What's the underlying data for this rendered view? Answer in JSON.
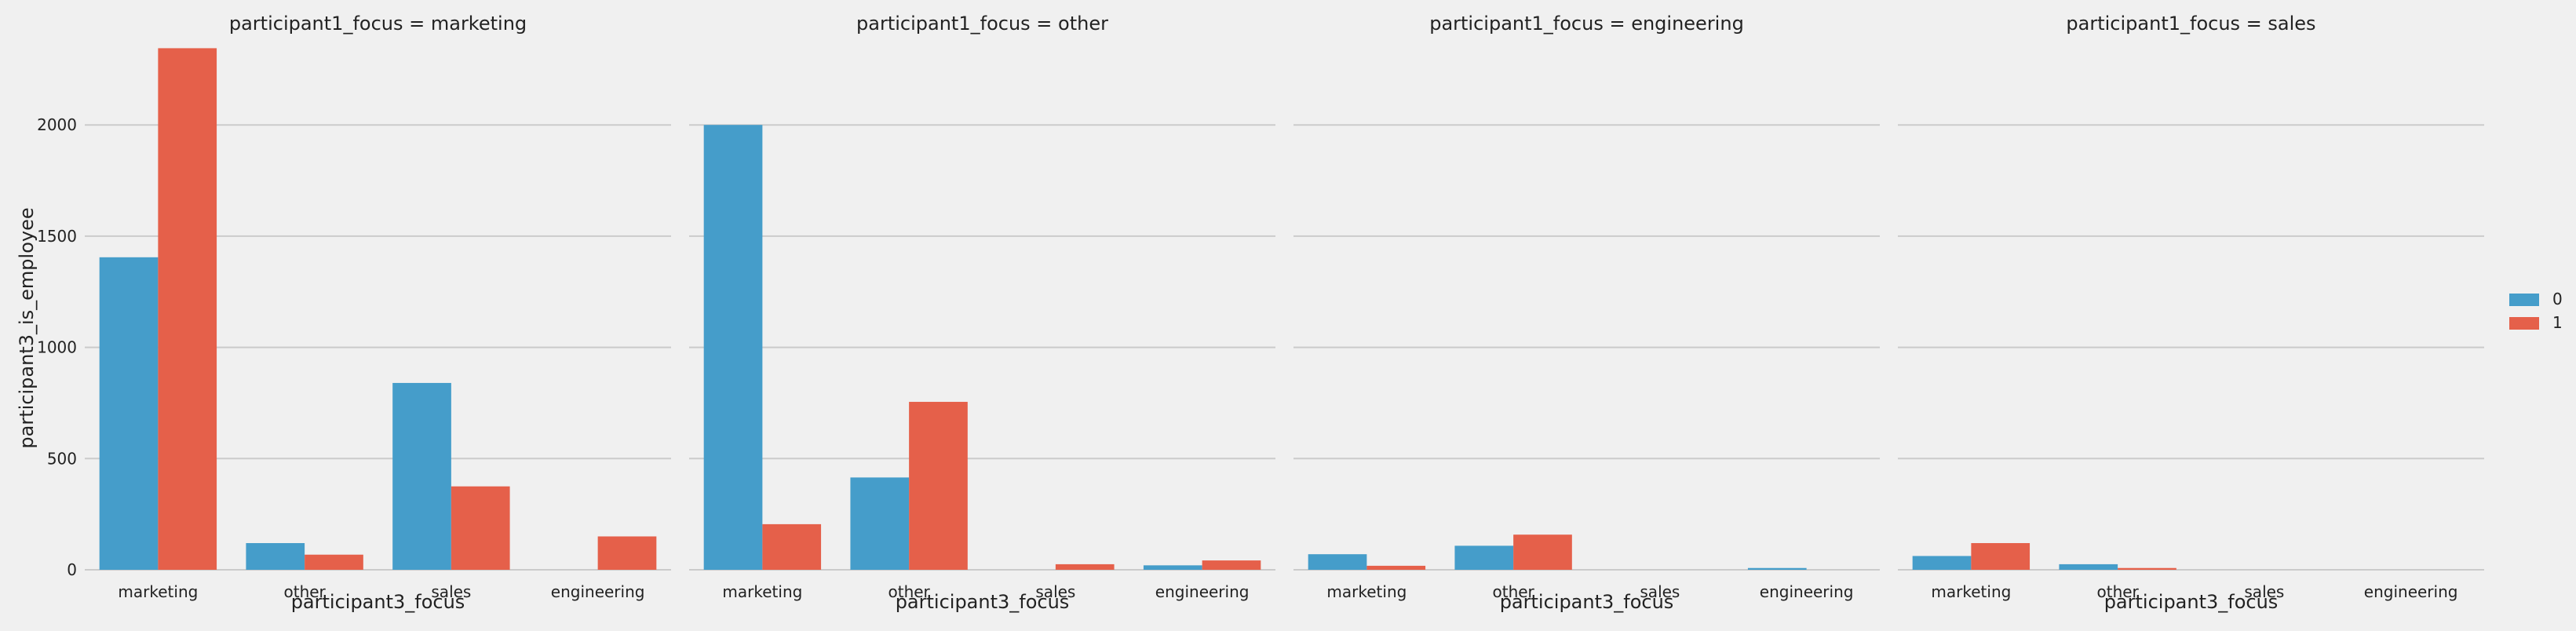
{
  "colors": {
    "background": "#f0f0f0",
    "grid": "#cbcbcb",
    "series": [
      "#459dca",
      "#e5604a"
    ],
    "text": "#222222"
  },
  "chart_data": {
    "type": "bar",
    "ylabel": "participant3_is_employee",
    "xlabel": "participant3_focus",
    "categories": [
      "marketing",
      "other",
      "sales",
      "engineering"
    ],
    "ylim": [
      0,
      2350
    ],
    "yticks": [
      0,
      500,
      1000,
      1500,
      2000
    ],
    "grid": true,
    "legend": {
      "placement": "right",
      "entries": [
        "0",
        "1"
      ]
    },
    "facets": [
      {
        "title": "participant1_focus = marketing",
        "series": [
          {
            "name": "0",
            "values": [
              1405,
              120,
              840,
              0
            ]
          },
          {
            "name": "1",
            "values": [
              2345,
              68,
              375,
              150
            ]
          }
        ]
      },
      {
        "title": "participant1_focus = other",
        "series": [
          {
            "name": "0",
            "values": [
              2000,
              415,
              0,
              20
            ]
          },
          {
            "name": "1",
            "values": [
              205,
              755,
              25,
              42
            ]
          }
        ]
      },
      {
        "title": "participant1_focus = engineering",
        "series": [
          {
            "name": "0",
            "values": [
              70,
              108,
              0,
              8
            ]
          },
          {
            "name": "1",
            "values": [
              18,
              158,
              0,
              0
            ]
          }
        ]
      },
      {
        "title": "participant1_focus = sales",
        "series": [
          {
            "name": "0",
            "values": [
              62,
              25,
              0,
              0
            ]
          },
          {
            "name": "1",
            "values": [
              120,
              8,
              0,
              0
            ]
          }
        ]
      }
    ]
  }
}
